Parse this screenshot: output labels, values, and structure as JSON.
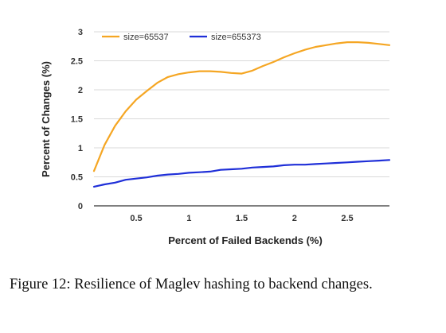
{
  "chart_data": {
    "type": "line",
    "xlabel": "Percent of Failed Backends (%)",
    "ylabel": "Percent of Changes (%)",
    "xlim": [
      0.1,
      2.9
    ],
    "ylim": [
      0,
      3
    ],
    "xticks": [
      "0.5",
      "1",
      "1.5",
      "2",
      "2.5"
    ],
    "yticks": [
      "0",
      "0.5",
      "1",
      "1.5",
      "2",
      "2.5",
      "3"
    ],
    "grid": "horizontal",
    "legend_position": "top-left",
    "series": [
      {
        "name": "size=65537",
        "color": "#f5a623",
        "x": [
          0.1,
          0.2,
          0.3,
          0.4,
          0.5,
          0.6,
          0.7,
          0.8,
          0.9,
          1.0,
          1.1,
          1.2,
          1.3,
          1.4,
          1.5,
          1.6,
          1.7,
          1.8,
          1.9,
          2.0,
          2.1,
          2.2,
          2.3,
          2.4,
          2.5,
          2.6,
          2.7,
          2.8,
          2.9
        ],
        "values": [
          0.6,
          1.05,
          1.38,
          1.63,
          1.83,
          1.98,
          2.12,
          2.22,
          2.27,
          2.3,
          2.32,
          2.32,
          2.31,
          2.29,
          2.28,
          2.33,
          2.41,
          2.48,
          2.56,
          2.63,
          2.69,
          2.74,
          2.77,
          2.8,
          2.82,
          2.82,
          2.81,
          2.79,
          2.77
        ]
      },
      {
        "name": "size=655373",
        "color": "#1f2fd8",
        "x": [
          0.1,
          0.2,
          0.3,
          0.4,
          0.5,
          0.6,
          0.7,
          0.8,
          0.9,
          1.0,
          1.1,
          1.2,
          1.3,
          1.4,
          1.5,
          1.6,
          1.7,
          1.8,
          1.9,
          2.0,
          2.1,
          2.2,
          2.3,
          2.4,
          2.5,
          2.6,
          2.7,
          2.8,
          2.9
        ],
        "values": [
          0.33,
          0.37,
          0.4,
          0.45,
          0.47,
          0.49,
          0.52,
          0.54,
          0.55,
          0.57,
          0.58,
          0.59,
          0.62,
          0.63,
          0.64,
          0.66,
          0.67,
          0.68,
          0.7,
          0.71,
          0.71,
          0.72,
          0.73,
          0.74,
          0.75,
          0.76,
          0.77,
          0.78,
          0.79
        ]
      }
    ]
  },
  "caption": "Figure 12:  Resilience of Maglev hashing to backend changes."
}
